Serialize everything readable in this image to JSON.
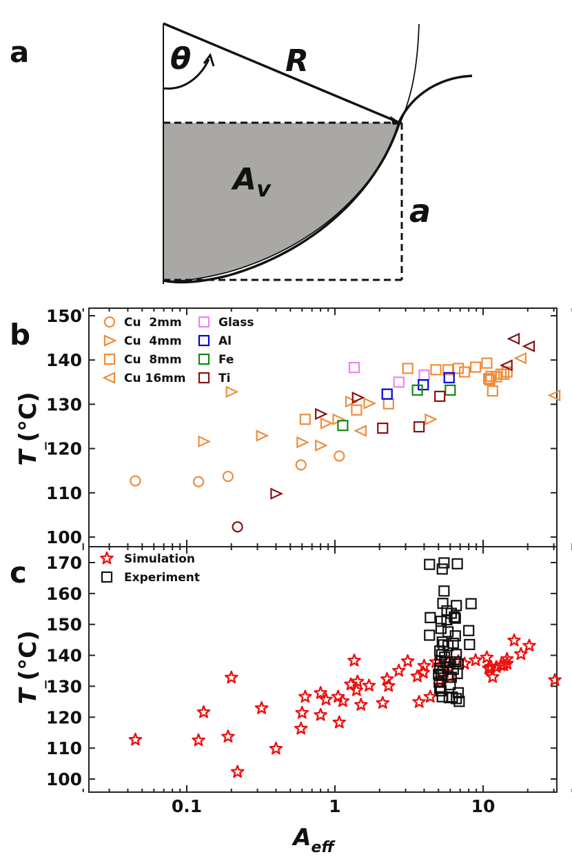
{
  "panel_a": {
    "letter": "a",
    "label_theta": "θ",
    "label_R": "R",
    "label_Av_main": "A",
    "label_Av_sub": "v",
    "label_a": "a"
  },
  "panel_b": {
    "letter": "b"
  },
  "panel_c": {
    "letter": "c"
  },
  "colors": {
    "cu": "#ef8c3a",
    "glass": "#ee82ee",
    "al": "#0000dd",
    "fe": "#118811",
    "ti": "#881111",
    "sim": "#ee1111",
    "exp": "#111111"
  },
  "chart_data": [
    {
      "type": "scatter",
      "panel": "b",
      "ylabel_main": "T",
      "ylabel_sub": "_",
      "ylabel_unit": "(°C)",
      "xscale": "log",
      "xlim": [
        0.02,
        40
      ],
      "ylim": [
        99,
        152
      ],
      "yticks": [
        100,
        110,
        120,
        130,
        140,
        150
      ],
      "ytick_labels": [
        "100",
        "110",
        "120",
        "130",
        "140",
        "150"
      ],
      "series": [
        {
          "name": "Cu  2mm",
          "marker": "circle",
          "color": "cu",
          "points": [
            [
              0.045,
              112.7
            ],
            [
              0.12,
              112.5
            ],
            [
              0.19,
              113.7
            ],
            [
              0.59,
              116.3
            ],
            [
              1.07,
              118.3
            ]
          ]
        },
        {
          "name": "Cu  4mm",
          "marker": "triangle-right",
          "color": "cu",
          "points": [
            [
              0.2,
              132.8
            ],
            [
              0.13,
              121.6
            ],
            [
              0.32,
              122.9
            ],
            [
              0.6,
              121.4
            ],
            [
              0.8,
              120.7
            ],
            [
              0.87,
              125.7
            ],
            [
              1.05,
              126.6
            ],
            [
              1.28,
              130.6
            ],
            [
              1.7,
              130.2
            ],
            [
              4.4,
              126.6
            ]
          ]
        },
        {
          "name": "Cu  8mm",
          "marker": "square",
          "color": "cu",
          "points": [
            [
              0.63,
              126.6
            ],
            [
              1.4,
              128.7
            ],
            [
              2.3,
              130.1
            ],
            [
              3.1,
              138.1
            ],
            [
              4.8,
              137.8
            ],
            [
              5.8,
              137.8
            ],
            [
              6.8,
              138.1
            ],
            [
              7.5,
              137.3
            ],
            [
              8.9,
              138.4
            ],
            [
              10.6,
              139.3
            ],
            [
              10.9,
              135.8
            ],
            [
              11.3,
              136.3
            ],
            [
              11.6,
              133.0
            ],
            [
              12.3,
              136.2
            ],
            [
              13.2,
              136.8
            ],
            [
              13.8,
              136.8
            ],
            [
              14.5,
              137.3
            ],
            [
              11.1,
              135.5
            ]
          ]
        },
        {
          "name": "Cu 16mm",
          "marker": "triangle-left",
          "color": "cu",
          "points": [
            [
              1.5,
              124.0
            ],
            [
              18.0,
              140.4
            ],
            [
              30.5,
              132.0
            ]
          ]
        },
        {
          "name": "Glass",
          "marker": "square",
          "color": "glass",
          "points": [
            [
              1.35,
              138.3
            ],
            [
              2.7,
              135.0
            ],
            [
              4.0,
              136.6
            ]
          ]
        },
        {
          "name": "Al",
          "marker": "square",
          "color": "al",
          "points": [
            [
              2.25,
              132.3
            ],
            [
              3.95,
              134.4
            ],
            [
              5.9,
              136.0
            ]
          ]
        },
        {
          "name": "Fe",
          "marker": "square",
          "color": "fe",
          "points": [
            [
              1.13,
              125.2
            ],
            [
              3.6,
              133.2
            ],
            [
              6.0,
              133.2
            ]
          ]
        },
        {
          "name": "Ti",
          "marker": "square",
          "color": "ti",
          "points": [
            [
              2.1,
              124.6
            ],
            [
              3.7,
              124.9
            ],
            [
              5.1,
              131.8
            ]
          ]
        },
        {
          "name": "Ti open triangles",
          "marker": "triangle-right",
          "color": "ti",
          "in_legend": false,
          "points": [
            [
              0.8,
              127.8
            ],
            [
              1.42,
              131.5
            ],
            [
              0.4,
              109.8
            ]
          ]
        },
        {
          "name": "Ti open triangles left",
          "marker": "triangle-left",
          "color": "ti",
          "in_legend": false,
          "points": [
            [
              14.5,
              138.8
            ],
            [
              16.2,
              144.8
            ],
            [
              20.5,
              143.1
            ]
          ]
        },
        {
          "name": "Ti circle",
          "marker": "circle",
          "color": "ti",
          "in_legend": false,
          "points": [
            [
              0.22,
              102.3
            ]
          ]
        }
      ]
    },
    {
      "type": "scatter",
      "panel": "c",
      "ylabel_main": "T",
      "ylabel_sub": "_",
      "ylabel_unit": "(°C)",
      "xlabel_main": "A",
      "xlabel_sub": "eff",
      "xscale": "log",
      "xlim": [
        0.02,
        40
      ],
      "ylim": [
        98,
        175
      ],
      "yticks": [
        100,
        110,
        120,
        130,
        140,
        150,
        160,
        170
      ],
      "ytick_labels": [
        "100",
        "110",
        "120",
        "130",
        "140",
        "150",
        "160",
        "170"
      ],
      "xticks": [
        0.1,
        1,
        10
      ],
      "xtick_labels": [
        "0.1",
        "1",
        "10"
      ],
      "series": [
        {
          "name": "Simulation",
          "marker": "star",
          "color": "sim",
          "points": [
            [
              0.045,
              112.7
            ],
            [
              0.12,
              112.5
            ],
            [
              0.19,
              113.7
            ],
            [
              0.2,
              132.8
            ],
            [
              0.22,
              102.3
            ],
            [
              0.13,
              121.6
            ],
            [
              0.32,
              122.9
            ],
            [
              0.4,
              109.8
            ],
            [
              0.59,
              116.3
            ],
            [
              0.6,
              121.4
            ],
            [
              0.63,
              126.6
            ],
            [
              0.8,
              127.8
            ],
            [
              0.8,
              120.7
            ],
            [
              0.87,
              125.7
            ],
            [
              1.05,
              126.6
            ],
            [
              1.07,
              118.3
            ],
            [
              1.13,
              125.2
            ],
            [
              1.28,
              130.6
            ],
            [
              1.35,
              138.3
            ],
            [
              1.4,
              128.7
            ],
            [
              1.42,
              131.5
            ],
            [
              1.5,
              124.0
            ],
            [
              1.7,
              130.2
            ],
            [
              2.1,
              124.6
            ],
            [
              2.25,
              132.3
            ],
            [
              2.3,
              130.1
            ],
            [
              2.7,
              135.0
            ],
            [
              3.1,
              138.1
            ],
            [
              3.6,
              133.2
            ],
            [
              3.7,
              124.9
            ],
            [
              3.95,
              134.4
            ],
            [
              4.0,
              136.6
            ],
            [
              4.4,
              126.6
            ],
            [
              4.8,
              137.8
            ],
            [
              5.1,
              131.8
            ],
            [
              5.8,
              137.8
            ],
            [
              5.9,
              136.0
            ],
            [
              6.0,
              133.2
            ],
            [
              6.8,
              138.1
            ],
            [
              7.5,
              137.3
            ],
            [
              8.9,
              138.4
            ],
            [
              10.6,
              139.3
            ],
            [
              10.9,
              135.8
            ],
            [
              11.1,
              135.5
            ],
            [
              11.3,
              136.3
            ],
            [
              11.6,
              133.0
            ],
            [
              12.3,
              136.2
            ],
            [
              13.2,
              136.8
            ],
            [
              13.8,
              136.8
            ],
            [
              14.5,
              137.3
            ],
            [
              14.5,
              138.8
            ],
            [
              16.2,
              144.8
            ],
            [
              18.0,
              140.4
            ],
            [
              20.5,
              143.1
            ],
            [
              30.5,
              132.0
            ]
          ]
        },
        {
          "name": "Experiment",
          "marker": "square",
          "color": "exp",
          "points": [
            [
              4.35,
              169.4
            ],
            [
              5.3,
              167.9
            ],
            [
              5.45,
              169.9
            ],
            [
              6.7,
              169.6
            ],
            [
              5.45,
              160.8
            ],
            [
              5.35,
              156.8
            ],
            [
              6.6,
              156.1
            ],
            [
              8.3,
              156.7
            ],
            [
              5.7,
              154.4
            ],
            [
              6.1,
              153.6
            ],
            [
              4.4,
              152.2
            ],
            [
              5.2,
              151.0
            ],
            [
              5.7,
              151.5
            ],
            [
              6.4,
              152.4
            ],
            [
              6.5,
              152.0
            ],
            [
              4.35,
              146.5
            ],
            [
              5.2,
              148.7
            ],
            [
              5.8,
              147.6
            ],
            [
              6.5,
              146.3
            ],
            [
              5.3,
              144.3
            ],
            [
              5.4,
              143.4
            ],
            [
              5.8,
              143.1
            ],
            [
              6.3,
              143.9
            ],
            [
              8.0,
              148.0
            ],
            [
              8.1,
              143.5
            ],
            [
              5.1,
              141.4
            ],
            [
              5.25,
              140.2
            ],
            [
              5.5,
              139.4
            ],
            [
              6.6,
              140.3
            ],
            [
              5.15,
              138.1
            ],
            [
              5.6,
              137.7
            ],
            [
              6.0,
              137.8
            ],
            [
              6.5,
              137.9
            ],
            [
              6.8,
              137.2
            ],
            [
              5.1,
              135.8
            ],
            [
              5.35,
              134.9
            ],
            [
              5.75,
              136.1
            ],
            [
              6.3,
              135.5
            ],
            [
              5.0,
              133.9
            ],
            [
              5.2,
              133.5
            ],
            [
              6.1,
              132.9
            ],
            [
              6.7,
              134.1
            ],
            [
              5.05,
              131.3
            ],
            [
              6.0,
              130.5
            ],
            [
              5.1,
              129.3
            ],
            [
              5.2,
              128.5
            ],
            [
              6.8,
              127.9
            ],
            [
              5.3,
              126.6
            ],
            [
              5.9,
              126.3
            ],
            [
              6.2,
              126.5
            ],
            [
              6.6,
              126.0
            ],
            [
              6.9,
              125.1
            ]
          ]
        }
      ]
    }
  ]
}
